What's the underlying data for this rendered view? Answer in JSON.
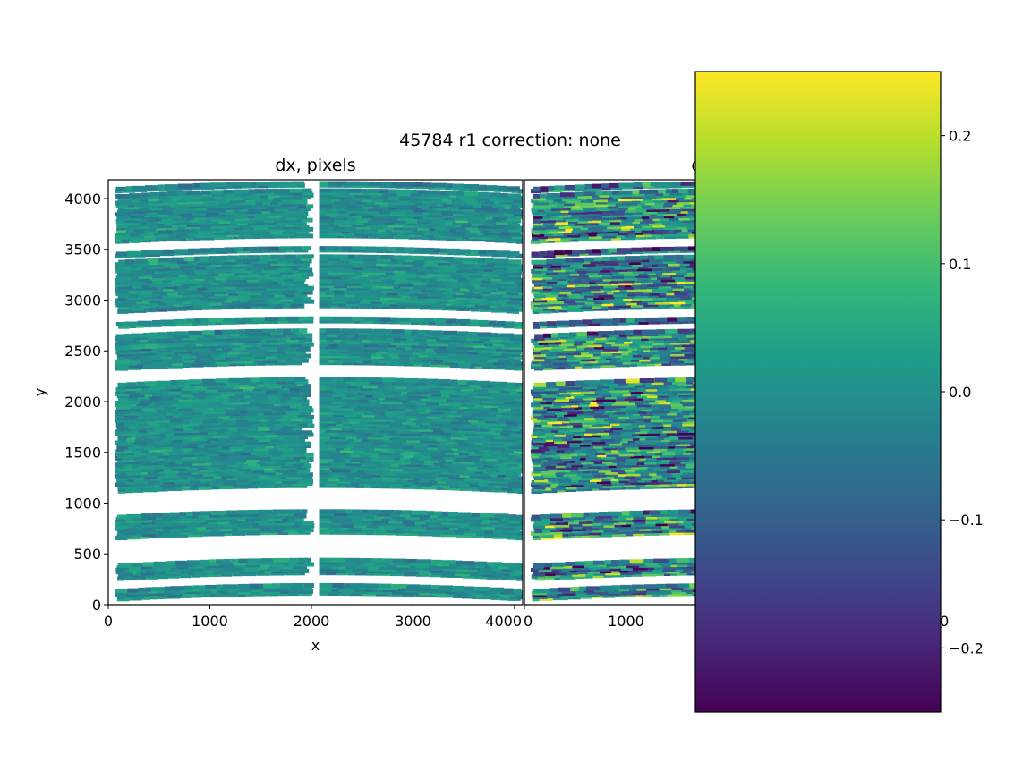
{
  "chart_data": {
    "type": "scatter",
    "title": "45784 r1  correction: none",
    "panels": [
      {
        "id": "dx",
        "title": "dx, pixels",
        "xlabel": "x",
        "ylabel": "y",
        "spread": 0.06
      },
      {
        "id": "dy",
        "title": "dy, pixels",
        "xlabel": "",
        "ylabel": "",
        "spread": 0.2
      }
    ],
    "xlim": [
      0,
      4080
    ],
    "ylim": [
      0,
      4185
    ],
    "xticks": [
      0,
      1000,
      2000,
      3000,
      4000
    ],
    "xticklabels": [
      "0",
      "1000",
      "2000",
      "3000",
      "4000"
    ],
    "yticks": [
      0,
      500,
      1000,
      1500,
      2000,
      2500,
      3000,
      3500,
      4000
    ],
    "yticklabels": [
      "0",
      "500",
      "1000",
      "1500",
      "2000",
      "2500",
      "3000",
      "3500",
      "4000"
    ],
    "bands_y": [
      [
        100,
        200
      ],
      [
        300,
        450
      ],
      [
        700,
        930
      ],
      [
        1160,
        2230
      ],
      [
        2370,
        2710
      ],
      [
        2780,
        2830
      ],
      [
        2930,
        3440
      ],
      [
        3480,
        3520
      ],
      [
        3620,
        4090
      ],
      [
        4120,
        4160
      ]
    ],
    "chip_gap_x": [
      2030,
      2070
    ],
    "colorbar": {
      "cmap": "viridis",
      "range": [
        -0.25,
        0.25
      ],
      "ticks": [
        -0.2,
        -0.1,
        0.0,
        0.1,
        0.2
      ],
      "ticklabels": [
        "−0.2",
        "−0.1",
        "0.0",
        "0.1",
        "0.2"
      ]
    }
  }
}
